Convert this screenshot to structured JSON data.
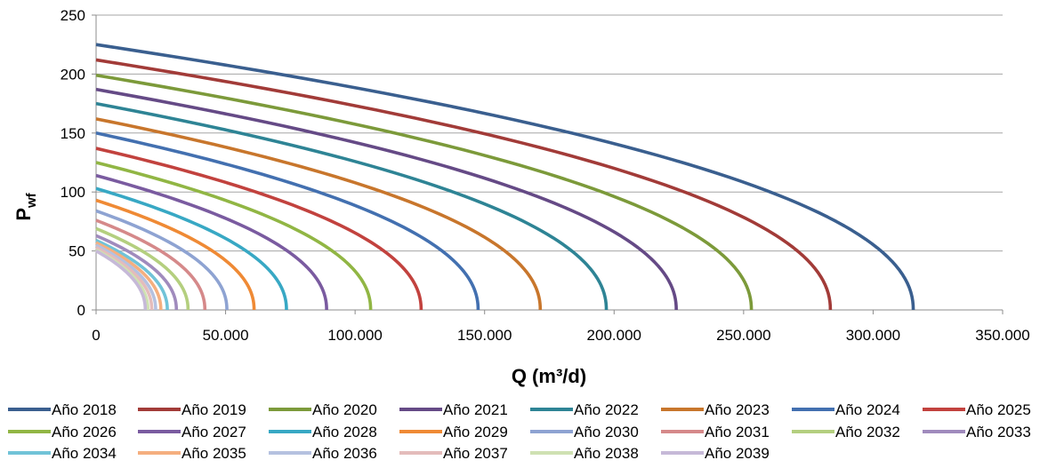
{
  "chart_data": {
    "type": "line",
    "title": "",
    "xlabel": "Q (m³/d)",
    "ylabel": "Pwf",
    "ylabel_main": "P",
    "ylabel_sub": "wf",
    "xlim": [
      0,
      350000
    ],
    "ylim": [
      0,
      250
    ],
    "xticks": [
      0,
      50000,
      100000,
      150000,
      200000,
      250000,
      300000,
      350000
    ],
    "xtick_labels": [
      "0",
      "50.000",
      "100.000",
      "150.000",
      "200.000",
      "250.000",
      "300.000",
      "350.000"
    ],
    "yticks": [
      0,
      50,
      100,
      150,
      200,
      250
    ],
    "ytick_labels": [
      "0",
      "50",
      "100",
      "150",
      "200",
      "250"
    ],
    "grid": "horizontal",
    "legend_position": "bottom",
    "series": [
      {
        "name": "Año 2018",
        "color": "#3A5F8F",
        "pmax": 225,
        "qmax": 315500
      },
      {
        "name": "Año 2019",
        "color": "#A23B38",
        "pmax": 212,
        "qmax": 283500
      },
      {
        "name": "Año 2020",
        "color": "#7C9A3A",
        "pmax": 199,
        "qmax": 253000
      },
      {
        "name": "Año 2021",
        "color": "#654A86",
        "pmax": 187,
        "qmax": 224000
      },
      {
        "name": "Año 2022",
        "color": "#2E8495",
        "pmax": 175,
        "qmax": 197000
      },
      {
        "name": "Año 2023",
        "color": "#C8762C",
        "pmax": 162,
        "qmax": 171500
      },
      {
        "name": "Año 2024",
        "color": "#4370B0",
        "pmax": 150,
        "qmax": 147500
      },
      {
        "name": "Año 2025",
        "color": "#C2423E",
        "pmax": 137,
        "qmax": 125500
      },
      {
        "name": "Año 2026",
        "color": "#91B644",
        "pmax": 125,
        "qmax": 106000
      },
      {
        "name": "Año 2027",
        "color": "#7A5BA0",
        "pmax": 114,
        "qmax": 89000
      },
      {
        "name": "Año 2028",
        "color": "#38A8C4",
        "pmax": 103,
        "qmax": 73500
      },
      {
        "name": "Año 2029",
        "color": "#EF8A35",
        "pmax": 93,
        "qmax": 61000
      },
      {
        "name": "Año 2030",
        "color": "#8EA3D2",
        "pmax": 84,
        "qmax": 50500
      },
      {
        "name": "Año 2031",
        "color": "#D5898A",
        "pmax": 76,
        "qmax": 42000
      },
      {
        "name": "Año 2032",
        "color": "#B4CF7F",
        "pmax": 69,
        "qmax": 35500
      },
      {
        "name": "Año 2033",
        "color": "#A08BBD",
        "pmax": 63,
        "qmax": 31000
      },
      {
        "name": "Año 2034",
        "color": "#71C3D8",
        "pmax": 59,
        "qmax": 27500
      },
      {
        "name": "Año 2035",
        "color": "#F5AF7F",
        "pmax": 57,
        "qmax": 25000
      },
      {
        "name": "Año 2036",
        "color": "#B5C1E0",
        "pmax": 55,
        "qmax": 23000
      },
      {
        "name": "Año 2037",
        "color": "#E4BCBB",
        "pmax": 53,
        "qmax": 21500
      },
      {
        "name": "Año 2038",
        "color": "#CFE1B2",
        "pmax": 51,
        "qmax": 20000
      },
      {
        "name": "Año 2039",
        "color": "#C6B9D8",
        "pmax": 50,
        "qmax": 19000
      }
    ]
  }
}
